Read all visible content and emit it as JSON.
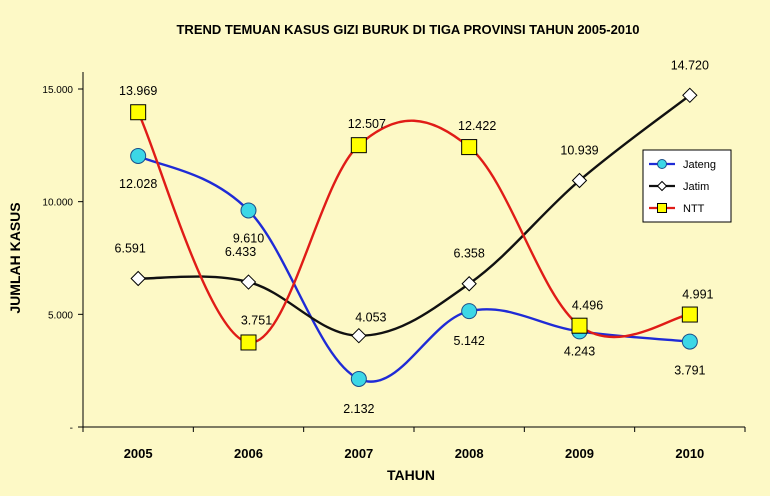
{
  "chart_data": {
    "type": "line",
    "title": "TREND TEMUAN KASUS GIZI BURUK DI TIGA PROVINSI TAHUN 2005-2010",
    "xlabel": "TAHUN",
    "ylabel": "JUMLAH KASUS",
    "categories": [
      "2005",
      "2006",
      "2007",
      "2008",
      "2009",
      "2010"
    ],
    "ylim": [
      0,
      15000
    ],
    "yticks": [
      0,
      5000,
      10000,
      15000
    ],
    "ytick_labels": [
      "-",
      "5.000",
      "10.000",
      "15.000"
    ],
    "grid": false,
    "legend_position": "right",
    "series": [
      {
        "name": "Jateng",
        "color": "#1f2bd6",
        "marker": "circle",
        "marker_fill": "#3cd7e6",
        "values": [
          12028,
          9610,
          2132,
          5142,
          4243,
          3791
        ],
        "labels": [
          "12.028",
          "9.610",
          "2.132",
          "5.142",
          "4.243",
          "3.791"
        ]
      },
      {
        "name": "Jatim",
        "color": "#111111",
        "marker": "diamond",
        "marker_fill": "#ffffff",
        "values": [
          6591,
          6433,
          4053,
          6358,
          10939,
          14720
        ],
        "labels": [
          "6.591",
          "6.433",
          "4.053",
          "6.358",
          "10.939",
          "14.720"
        ]
      },
      {
        "name": "NTT",
        "color": "#e01c17",
        "marker": "square",
        "marker_fill": "#ffff00",
        "values": [
          13969,
          3751,
          12507,
          12422,
          4496,
          4991
        ],
        "labels": [
          "13.969",
          "3.751",
          "12.507",
          "12.422",
          "4.496",
          "4.991"
        ]
      }
    ]
  }
}
